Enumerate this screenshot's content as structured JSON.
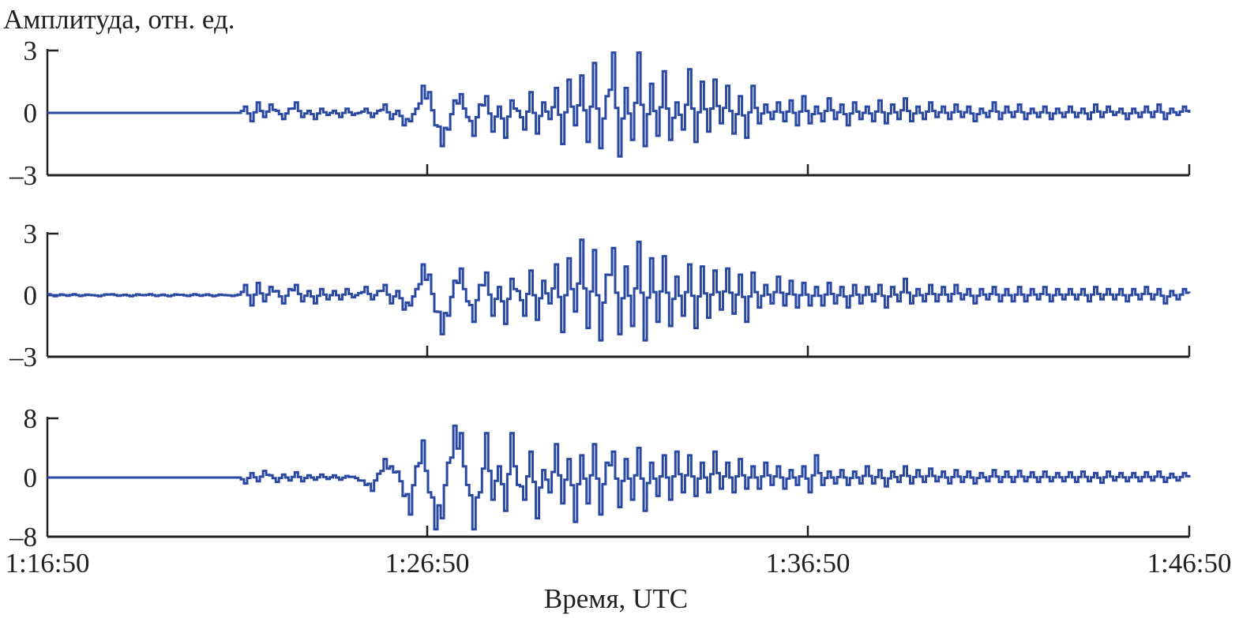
{
  "chart_data": {
    "type": "line",
    "ylabel": "Амплитуда, отн. ед.",
    "xlabel": "Время, UTC",
    "x_ticks": [
      "1:16:50",
      "1:26:50",
      "1:36:50",
      "1:46:50"
    ],
    "x_range": [
      "1:16:50",
      "1:46:50"
    ],
    "sample_step_seconds": 10,
    "line_color": "#2a48a0",
    "grid": false,
    "panels": [
      {
        "ylim": [
          -3,
          3
        ],
        "y_ticks": [
          "3",
          "0",
          "–3"
        ],
        "values": [
          0,
          0,
          0,
          0,
          0,
          0,
          0,
          0,
          0,
          0,
          0,
          0,
          0,
          0,
          0,
          0,
          0,
          0,
          0,
          0,
          0,
          0,
          0,
          0,
          0,
          0,
          0,
          0,
          0,
          0,
          0,
          0.3,
          -0.4,
          0.5,
          -0.2,
          0.4,
          0.1,
          -0.3,
          0.2,
          0.5,
          -0.2,
          0.1,
          -0.3,
          0.2,
          -0.1,
          0.1,
          -0.2,
          0.2,
          -0.1,
          0.0,
          0.2,
          -0.2,
          0.1,
          0.4,
          -0.3,
          0.1,
          -0.6,
          -0.4,
          0.2,
          1.3,
          1.0,
          -0.6,
          -1.6,
          -0.8,
          0.6,
          0.9,
          -0.2,
          -1.1,
          0.4,
          0.8,
          -0.9,
          0.3,
          -1.2,
          0.6,
          0.1,
          -0.8,
          1.0,
          -1.0,
          0.5,
          -0.3,
          1.2,
          -1.5,
          1.6,
          -0.6,
          1.8,
          -1.4,
          2.4,
          -1.7,
          0.8,
          2.9,
          -2.1,
          1.2,
          -1.3,
          2.9,
          -1.6,
          1.4,
          -1.1,
          2.0,
          -1.3,
          0.5,
          -0.8,
          2.1,
          -1.4,
          1.5,
          -0.9,
          1.6,
          -0.5,
          1.3,
          -1.0,
          0.8,
          -1.2,
          1.3,
          -0.5,
          0.4,
          -0.3,
          0.5,
          -0.4,
          0.6,
          -0.6,
          0.8,
          -0.5,
          0.3,
          -0.4,
          0.7,
          -0.3,
          0.4,
          -0.6,
          0.5,
          -0.3,
          0.3,
          -0.4,
          0.6,
          -0.5,
          0.4,
          -0.3,
          0.7,
          -0.4,
          0.3,
          -0.3,
          0.5,
          -0.2,
          0.3,
          -0.3,
          0.4,
          -0.2,
          0.3,
          -0.4,
          0.2,
          -0.2,
          0.5,
          -0.3,
          0.3,
          -0.2,
          0.4,
          -0.3,
          0.2,
          -0.2,
          0.3,
          -0.3,
          0.2,
          -0.2,
          0.3,
          -0.2,
          0.2,
          -0.3,
          0.4,
          -0.2,
          0.3,
          -0.1,
          0.2,
          -0.3,
          0.2,
          -0.2,
          0.3,
          -0.2,
          0.4,
          -0.3,
          0.2,
          -0.1,
          0.3,
          0.0
        ]
      },
      {
        "ylim": [
          -3,
          3
        ],
        "y_ticks": [
          "3",
          "0",
          "–3"
        ],
        "values": [
          0.05,
          -0.05,
          0.04,
          -0.03,
          0.05,
          -0.04,
          0.03,
          0.0,
          -0.05,
          0.04,
          0.05,
          -0.03,
          0.02,
          -0.05,
          0.04,
          0.0,
          0.05,
          -0.04,
          0.03,
          -0.05,
          0.04,
          0.02,
          -0.04,
          0.05,
          -0.03,
          0.04,
          -0.05,
          0.03,
          0.0,
          -0.04,
          0.03,
          0.5,
          -0.5,
          0.6,
          -0.3,
          0.4,
          0.2,
          -0.4,
          0.3,
          0.5,
          -0.3,
          0.2,
          -0.4,
          0.3,
          -0.2,
          0.2,
          -0.2,
          0.3,
          -0.1,
          0.1,
          0.4,
          -0.2,
          0.2,
          0.5,
          -0.4,
          0.2,
          -0.7,
          -0.5,
          0.3,
          1.5,
          1.0,
          -0.8,
          -1.9,
          -1.0,
          0.7,
          1.3,
          -0.3,
          -1.3,
          0.5,
          1.1,
          -1.0,
          0.4,
          -1.4,
          0.8,
          0.2,
          -1.0,
          1.2,
          -1.2,
          0.7,
          -0.4,
          1.5,
          -1.8,
          1.8,
          -0.8,
          2.7,
          -1.6,
          2.2,
          -2.2,
          1.0,
          2.3,
          -1.9,
          1.4,
          -1.5,
          2.6,
          -2.2,
          1.8,
          -1.3,
          1.9,
          -1.5,
          0.9,
          -1.0,
          1.5,
          -1.6,
          1.4,
          -1.1,
          1.2,
          -0.7,
          1.3,
          -0.9,
          1.0,
          -1.3,
          1.1,
          -0.6,
          0.5,
          -0.4,
          0.9,
          -0.5,
          0.7,
          -0.6,
          0.6,
          -0.5,
          0.4,
          -0.5,
          0.6,
          -0.4,
          0.4,
          -0.6,
          0.5,
          -0.4,
          0.4,
          -0.3,
          0.5,
          -0.6,
          0.4,
          -0.3,
          0.8,
          -0.4,
          0.3,
          -0.3,
          0.5,
          -0.3,
          0.4,
          -0.3,
          0.5,
          -0.2,
          0.3,
          -0.4,
          0.3,
          -0.2,
          0.4,
          -0.3,
          0.3,
          -0.3,
          0.4,
          -0.3,
          0.3,
          -0.2,
          0.4,
          -0.3,
          0.3,
          -0.2,
          0.3,
          -0.2,
          0.3,
          -0.3,
          0.4,
          -0.2,
          0.3,
          -0.2,
          0.3,
          -0.3,
          0.3,
          -0.2,
          0.4,
          -0.2,
          0.3,
          -0.4,
          0.2,
          -0.2,
          0.3,
          0.1
        ]
      },
      {
        "ylim": [
          -8,
          8
        ],
        "y_ticks": [
          "8",
          "0",
          "–8"
        ],
        "values": [
          0,
          0,
          0,
          0,
          0,
          0,
          0,
          0,
          0,
          0,
          0,
          0,
          0,
          0,
          0,
          0,
          0,
          0,
          0,
          0,
          0,
          0,
          0,
          0,
          0,
          0,
          0,
          0,
          0,
          0,
          0,
          -0.8,
          0.6,
          -0.5,
          0.9,
          0.3,
          -0.6,
          0.4,
          -0.4,
          0.7,
          -0.5,
          0.3,
          -0.3,
          0.4,
          -0.2,
          0.3,
          -0.3,
          0.2,
          0.1,
          -0.4,
          -1.0,
          -1.8,
          0.5,
          2.5,
          1.5,
          0.8,
          -2.5,
          -5.0,
          1.5,
          5.0,
          -2.0,
          -7.0,
          -5.5,
          2.0,
          7.0,
          6.0,
          -1.0,
          -7.0,
          -2.0,
          6.0,
          -3.0,
          1.5,
          -4.5,
          6.0,
          -1.0,
          -3.0,
          3.5,
          -5.5,
          1.0,
          -2.0,
          4.5,
          -3.5,
          2.5,
          -6.0,
          3.0,
          -3.5,
          4.5,
          -5.0,
          2.0,
          3.5,
          -4.0,
          2.5,
          -3.0,
          4.0,
          -4.5,
          2.0,
          -2.5,
          3.0,
          -3.0,
          3.5,
          -2.0,
          3.0,
          -2.5,
          2.0,
          -2.0,
          3.5,
          -1.5,
          2.0,
          -2.0,
          2.5,
          -1.5,
          1.5,
          -1.5,
          2.0,
          -1.0,
          1.5,
          -1.5,
          1.0,
          -1.0,
          1.5,
          -2.0,
          3.0,
          -1.0,
          0.8,
          -0.8,
          1.0,
          -1.0,
          0.8,
          -0.8,
          1.5,
          -0.8,
          1.0,
          -1.2,
          0.8,
          -0.6,
          1.5,
          -0.8,
          1.0,
          -0.6,
          1.2,
          -0.5,
          0.8,
          -0.8,
          1.0,
          -0.6,
          0.8,
          -0.8,
          0.6,
          -0.5,
          1.0,
          -0.6,
          0.8,
          -0.6,
          0.9,
          -0.5,
          0.7,
          -0.6,
          0.8,
          -0.5,
          0.6,
          -0.5,
          0.7,
          -0.6,
          0.8,
          -0.5,
          0.6,
          -0.7,
          0.8,
          -0.4,
          0.6,
          -0.5,
          0.6,
          -0.5,
          0.7,
          -0.4,
          0.8,
          -0.6,
          0.5,
          -0.4,
          0.6,
          0.0
        ]
      }
    ]
  }
}
